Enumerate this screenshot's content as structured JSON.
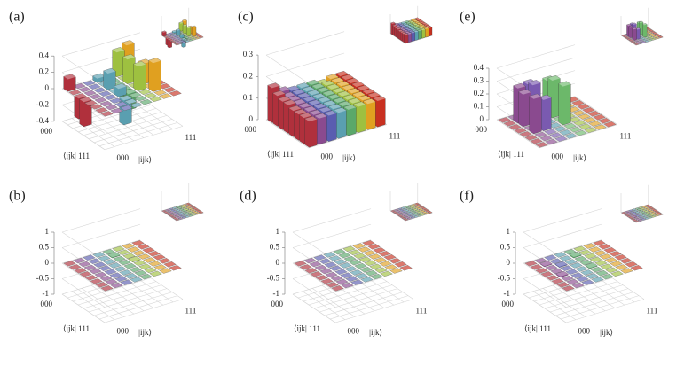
{
  "chart_data": [
    {
      "type": "bar3d",
      "label": "(a)",
      "x_label": "|ijk⟩",
      "y_label": "⟨ijk|",
      "x_categories": [
        "000",
        null,
        null,
        null,
        null,
        null,
        null,
        "111"
      ],
      "y_categories": [
        "000",
        null,
        null,
        null,
        null,
        null,
        null,
        "111"
      ],
      "zlim": [
        -0.4,
        0.4
      ],
      "zticks": [
        -0.4,
        -0.2,
        0,
        0.2,
        0.4
      ],
      "colors": [
        "#b0303c",
        "#8a4a8f",
        "#5a5db0",
        "#5a9fb0",
        "#5aa86a",
        "#9ec040",
        "#e0a020",
        "#c83020"
      ],
      "z": [
        [
          0.15,
          0,
          0,
          0.05,
          0,
          0.3,
          0.35,
          0
        ],
        [
          0,
          0,
          0,
          0,
          0,
          0,
          0,
          0
        ],
        [
          -0.25,
          0,
          0,
          0.2,
          0,
          0.3,
          0,
          0
        ],
        [
          -0.3,
          0,
          0,
          0,
          -0.1,
          0,
          0.25,
          0.1
        ],
        [
          0,
          0,
          0,
          0.1,
          -0.2,
          0.3,
          0,
          0
        ],
        [
          0,
          0,
          0,
          -0.3,
          0,
          0,
          0.35,
          0
        ],
        [
          0,
          0,
          0,
          0,
          0,
          0,
          0,
          0
        ],
        [
          0,
          0,
          0,
          0,
          0,
          0,
          0,
          0
        ]
      ]
    },
    {
      "type": "bar3d",
      "label": "(b)",
      "x_label": "|ijk⟩",
      "y_label": "⟨ijk|",
      "x_categories": [
        "000",
        null,
        null,
        null,
        null,
        null,
        null,
        "111"
      ],
      "y_categories": [
        "000",
        null,
        null,
        null,
        null,
        null,
        null,
        "111"
      ],
      "zlim": [
        -1,
        1
      ],
      "zticks": [
        -1,
        -0.5,
        0,
        0.5,
        1
      ],
      "colors": [
        "#b0303c",
        "#8a4a8f",
        "#5a5db0",
        "#5a9fb0",
        "#5aa86a",
        "#9ec040",
        "#e0a020",
        "#c83020"
      ],
      "z": [
        [
          0,
          0,
          0,
          0,
          0,
          0,
          0,
          0
        ],
        [
          0,
          0,
          0,
          0,
          0.02,
          0,
          0,
          0
        ],
        [
          0,
          0,
          0,
          0,
          0,
          0,
          0,
          0
        ],
        [
          0,
          0,
          0,
          0,
          0,
          0.02,
          0,
          0
        ],
        [
          0,
          0,
          0,
          0,
          0,
          0,
          0,
          0
        ],
        [
          0,
          0,
          0,
          0,
          0,
          0,
          0,
          0
        ],
        [
          0,
          0,
          0,
          0,
          0,
          0,
          0,
          0
        ],
        [
          0,
          0,
          0,
          0,
          0,
          0,
          0,
          0
        ]
      ]
    },
    {
      "type": "bar3d",
      "label": "(c)",
      "x_label": "|ijk⟩",
      "y_label": "⟨ijk|",
      "x_categories": [
        "000",
        null,
        null,
        null,
        null,
        null,
        null,
        "111"
      ],
      "y_categories": [
        "000",
        null,
        null,
        null,
        null,
        null,
        null,
        "111"
      ],
      "zlim": [
        0,
        0.3
      ],
      "zticks": [
        0,
        0.1,
        0.2,
        0.3
      ],
      "colors": [
        "#b0303c",
        "#8a4a8f",
        "#5a5db0",
        "#5a9fb0",
        "#5aa86a",
        "#9ec040",
        "#e0a020",
        "#c83020"
      ],
      "z": [
        [
          0.16,
          0.13,
          0.12,
          0.12,
          0.12,
          0.11,
          0.12,
          0.12
        ],
        [
          0.14,
          0.12,
          0.12,
          0.12,
          0.12,
          0.12,
          0.12,
          0.12
        ],
        [
          0.13,
          0.12,
          0.12,
          0.12,
          0.12,
          0.12,
          0.12,
          0.12
        ],
        [
          0.13,
          0.12,
          0.12,
          0.12,
          0.12,
          0.12,
          0.12,
          0.12
        ],
        [
          0.12,
          0.12,
          0.12,
          0.12,
          0.12,
          0.12,
          0.12,
          0.12
        ],
        [
          0.12,
          0.12,
          0.12,
          0.12,
          0.12,
          0.12,
          0.12,
          0.12
        ],
        [
          0.12,
          0.12,
          0.12,
          0.12,
          0.12,
          0.12,
          0.12,
          0.12
        ],
        [
          0.12,
          0.12,
          0.12,
          0.12,
          0.12,
          0.12,
          0.12,
          0.12
        ]
      ]
    },
    {
      "type": "bar3d",
      "label": "(d)",
      "x_label": "|ijk⟩",
      "y_label": "⟨ijk|",
      "x_categories": [
        "000",
        null,
        null,
        null,
        null,
        null,
        null,
        "111"
      ],
      "y_categories": [
        "000",
        null,
        null,
        null,
        null,
        null,
        null,
        "111"
      ],
      "zlim": [
        -1,
        1
      ],
      "zticks": [
        -1,
        -0.5,
        0,
        0.5,
        1
      ],
      "colors": [
        "#b0303c",
        "#8a4a8f",
        "#5a5db0",
        "#5a9fb0",
        "#5aa86a",
        "#9ec040",
        "#e0a020",
        "#c83020"
      ],
      "z": [
        [
          0,
          0,
          0,
          0,
          0,
          0,
          0,
          0
        ],
        [
          0,
          0,
          0,
          0,
          0,
          0,
          0,
          0
        ],
        [
          0,
          0,
          0,
          0,
          0,
          0,
          0,
          0
        ],
        [
          0,
          0,
          0,
          0,
          0,
          0,
          0,
          0
        ],
        [
          0,
          0,
          0,
          0,
          0,
          0,
          0,
          0
        ],
        [
          0,
          0,
          0,
          0,
          0,
          0,
          0,
          0
        ],
        [
          0,
          0,
          0,
          0,
          0,
          0,
          0,
          0
        ],
        [
          0,
          0,
          0,
          0,
          0,
          0,
          0,
          0
        ]
      ]
    },
    {
      "type": "bar3d",
      "label": "(e)",
      "x_label": "|ijk⟩",
      "y_label": "⟨ijk|",
      "x_categories": [
        "000",
        null,
        null,
        null,
        null,
        null,
        null,
        "111"
      ],
      "y_categories": [
        "000",
        null,
        null,
        null,
        null,
        null,
        null,
        "111"
      ],
      "zlim": [
        0,
        0.4
      ],
      "zticks": [
        0,
        0.1,
        0.2,
        0.3,
        0.4
      ],
      "colors": [
        "#b0303c",
        "#8a4a8f",
        "#7a5ab0",
        "#5a9fb0",
        "#6cb86a",
        "#9ec040",
        "#e0a020",
        "#c83020"
      ],
      "z": [
        [
          0,
          0,
          0,
          0,
          0,
          0,
          0,
          0
        ],
        [
          0,
          0.27,
          0.28,
          0,
          0.26,
          0,
          0,
          0
        ],
        [
          0,
          0.25,
          0.3,
          0,
          0.29,
          0,
          0,
          0
        ],
        [
          0,
          0,
          0,
          0,
          0,
          0,
          0,
          0
        ],
        [
          0,
          0.27,
          0.24,
          0,
          0.3,
          0,
          0,
          0
        ],
        [
          0,
          0,
          0,
          0,
          0,
          0,
          0,
          0
        ],
        [
          0,
          0,
          0,
          0,
          0,
          0,
          0,
          0
        ],
        [
          0,
          0,
          0,
          0,
          0,
          0,
          0,
          0
        ]
      ]
    },
    {
      "type": "bar3d",
      "label": "(f)",
      "x_label": "|ijk⟩",
      "y_label": "⟨ijk|",
      "x_categories": [
        "000",
        null,
        null,
        null,
        null,
        null,
        null,
        "111"
      ],
      "y_categories": [
        "000",
        null,
        null,
        null,
        null,
        null,
        null,
        "111"
      ],
      "zlim": [
        -1,
        1
      ],
      "zticks": [
        -1,
        -0.5,
        0,
        0.5,
        1
      ],
      "colors": [
        "#b0303c",
        "#8a4a8f",
        "#5a5db0",
        "#5a9fb0",
        "#5aa86a",
        "#9ec040",
        "#e0a020",
        "#c83020"
      ],
      "z": [
        [
          0,
          0,
          0,
          0,
          0,
          0,
          0,
          0
        ],
        [
          0,
          0.02,
          0,
          0,
          0.03,
          0,
          0,
          0
        ],
        [
          0,
          0,
          0.02,
          0,
          0,
          0,
          0,
          0
        ],
        [
          0,
          0,
          0,
          0,
          0,
          0,
          0,
          0
        ],
        [
          0,
          0.03,
          0,
          0,
          0.02,
          0,
          0,
          0
        ],
        [
          0,
          0,
          0,
          0,
          0,
          0,
          0,
          0
        ],
        [
          0,
          0,
          0,
          0,
          0,
          0,
          0,
          0
        ],
        [
          0,
          0,
          0,
          0,
          0,
          0,
          0,
          0
        ]
      ]
    }
  ]
}
